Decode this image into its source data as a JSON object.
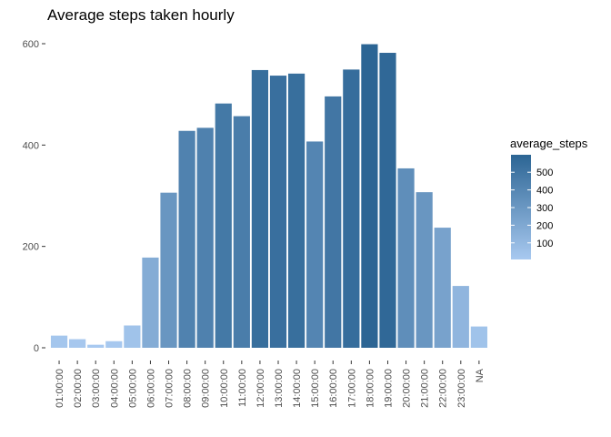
{
  "chart_data": {
    "type": "bar",
    "title": "Average steps taken hourly",
    "xlabel": "",
    "ylabel": "",
    "categories": [
      "01:00:00",
      "02:00:00",
      "03:00:00",
      "04:00:00",
      "05:00:00",
      "06:00:00",
      "07:00:00",
      "08:00:00",
      "09:00:00",
      "10:00:00",
      "11:00:00",
      "12:00:00",
      "13:00:00",
      "14:00:00",
      "15:00:00",
      "16:00:00",
      "17:00:00",
      "18:00:00",
      "19:00:00",
      "20:00:00",
      "21:00:00",
      "22:00:00",
      "23:00:00",
      "NA"
    ],
    "values": [
      24,
      17,
      6,
      13,
      44,
      178,
      306,
      428,
      434,
      482,
      457,
      548,
      537,
      541,
      407,
      496,
      549,
      599,
      582,
      354,
      307,
      237,
      122,
      42
    ],
    "ylim": [
      0,
      600
    ],
    "yticks": [
      0,
      200,
      400,
      600
    ],
    "ytick_labels": [
      "0",
      "200",
      "400",
      "600"
    ],
    "grid": false,
    "legend": {
      "title": "average_steps",
      "position": "right",
      "type": "colorbar",
      "ticks": [
        100,
        200,
        300,
        400,
        500
      ],
      "tick_labels": [
        "100",
        "200",
        "300",
        "400",
        "500"
      ],
      "color_low": "#a8c9f0",
      "color_high": "#2c6594"
    }
  }
}
